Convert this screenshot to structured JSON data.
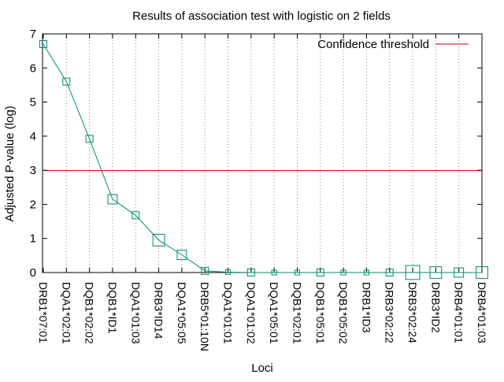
{
  "chart_data": {
    "type": "line",
    "title": "Results of association test with logistic on 2 fields",
    "xlabel": "Loci",
    "ylabel": "Adjusted P-value (log)",
    "ylim": [
      0,
      7
    ],
    "yticks": [
      "0",
      "1",
      "2",
      "3",
      "4",
      "5",
      "6",
      "7"
    ],
    "grid": "vertical dotted lines at each category",
    "legend_position": "top-right",
    "categories": [
      "DRB1*07:01",
      "DQA1*02:01",
      "DQB1*02:02",
      "DQB1*ID1",
      "DQA1*01:03",
      "DRB3*ID14",
      "DQA1*05:05",
      "DRB5*01:10N",
      "DQA1*01:01",
      "DQA1*01:02",
      "DQA1*05:01",
      "DQB1*02:01",
      "DQB1*05:01",
      "DQB1*05:02",
      "DRB1*ID3",
      "DRB3*02:22",
      "DRB3*02:24",
      "DRB3*ID2",
      "DRB4*01:01",
      "DRB4*01:03"
    ],
    "series": [
      {
        "values": [
          6.7,
          5.6,
          3.92,
          2.15,
          1.68,
          0.95,
          0.52,
          0.05,
          0.01,
          0.0,
          0.0,
          0.0,
          0.0,
          0.0,
          0.0,
          0.0,
          0.0,
          0.0,
          0.0,
          0.0
        ],
        "marker_size": [
          2,
          2,
          2,
          3,
          2,
          4,
          3,
          2,
          1,
          2,
          1,
          1,
          2,
          1,
          1,
          2,
          5,
          4,
          3,
          4
        ],
        "color": "#008b6e"
      }
    ],
    "threshold": {
      "name": "Confidence threshold",
      "value": 2.99,
      "color": "#cc0000"
    }
  }
}
